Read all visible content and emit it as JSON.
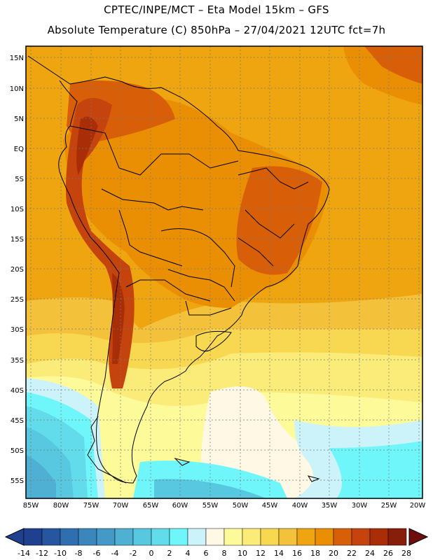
{
  "header": {
    "line1": "CPTEC/INPE/MCT –   Eta Model 15km – GFS",
    "line2": "Absolute Temperature (C) 850hPa – 27/04/2021 12UTC fct=7h"
  },
  "map": {
    "lat_labels": [
      "15N",
      "10N",
      "5N",
      "EQ",
      "5S",
      "10S",
      "15S",
      "20S",
      "25S",
      "30S",
      "35S",
      "40S",
      "45S",
      "50S",
      "55S"
    ],
    "lon_labels": [
      "85W",
      "80W",
      "75W",
      "70W",
      "65W",
      "60W",
      "55W",
      "50W",
      "45W",
      "40W",
      "35W",
      "30W",
      "25W",
      "20W"
    ]
  },
  "colorbar": {
    "labels": [
      "-14",
      "-12",
      "-10",
      "-8",
      "-6",
      "-4",
      "-2",
      "0",
      "2",
      "4",
      "6",
      "8",
      "10",
      "12",
      "14",
      "16",
      "18",
      "20",
      "22",
      "24",
      "26",
      "28"
    ],
    "colors": [
      "#1f3f8f",
      "#26569f",
      "#2f6fb0",
      "#3a86bd",
      "#4499c7",
      "#4fb0d3",
      "#58c7e0",
      "#62dcea",
      "#6ff6fa",
      "#cdf3fa",
      "#fff8e4",
      "#fdfa9a",
      "#fbeb78",
      "#f8d850",
      "#f3c23a",
      "#eea510",
      "#ea8f04",
      "#d85e08",
      "#c5430c",
      "#a92e08",
      "#861e0a",
      "#6e0e0c"
    ]
  }
}
